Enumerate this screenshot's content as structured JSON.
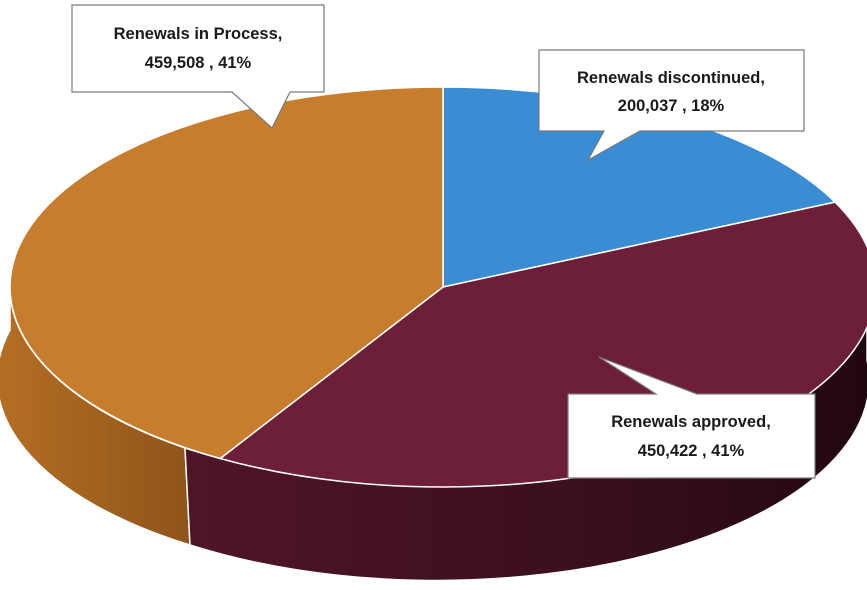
{
  "chart_data": {
    "type": "pie",
    "style": "3d",
    "slices": [
      {
        "label": "Renewals discontinued",
        "value": 200037,
        "percent": "18%",
        "color": "#3A8DD3",
        "callout": {
          "line1": "Renewals discontinued,",
          "line2": "200,037 , 18%"
        }
      },
      {
        "label": "Renewals approved",
        "value": 450422,
        "percent": "41%",
        "color": "#6E1F38",
        "callout": {
          "line1": "Renewals approved,",
          "line2": "450,422 , 41%"
        }
      },
      {
        "label": "Renewals in Process",
        "value": 459508,
        "percent": "41%",
        "color": "#C77D2E",
        "callout": {
          "line1": "Renewals in Process,",
          "line2": "459,508 , 41%"
        }
      }
    ]
  }
}
